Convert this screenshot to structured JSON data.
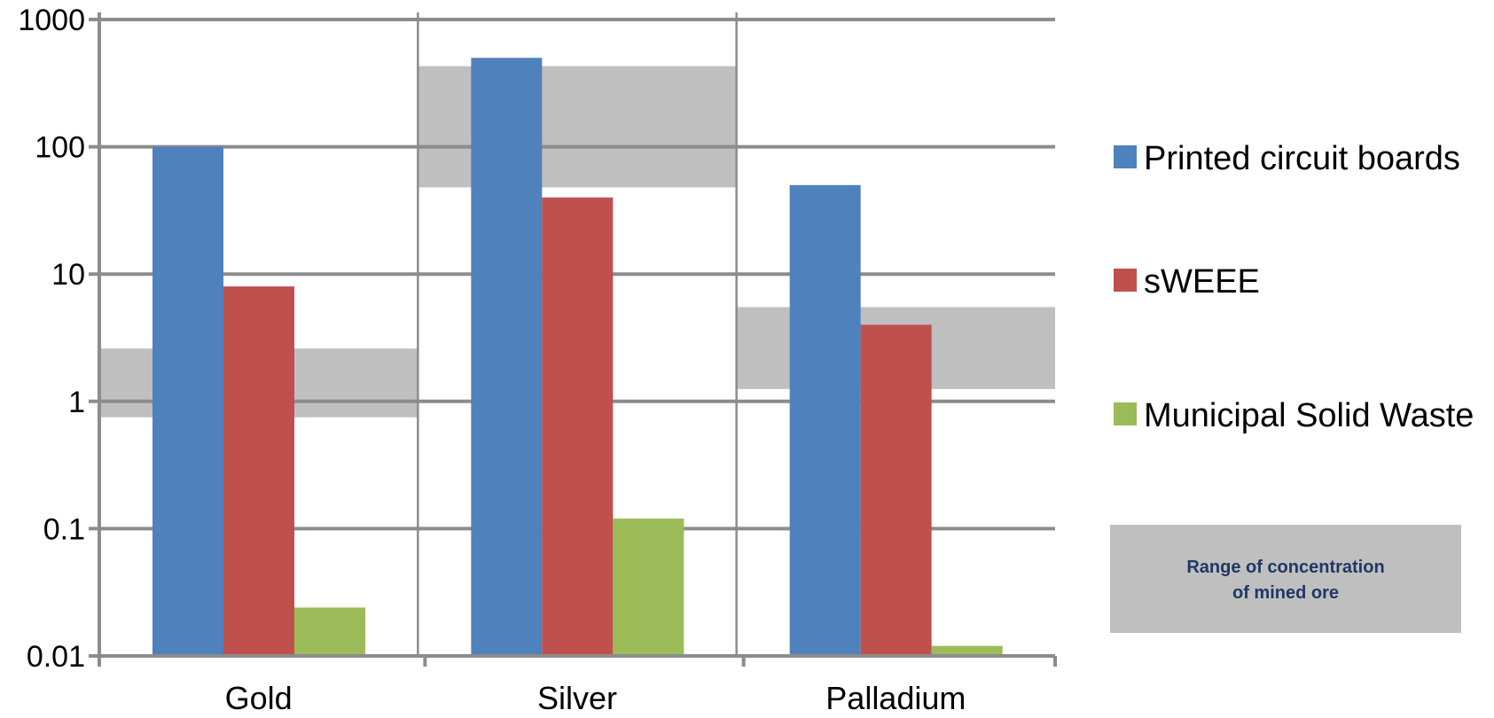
{
  "chart_data": {
    "type": "bar",
    "scale": "log",
    "ylim": [
      0.01,
      1000
    ],
    "yticks": [
      "1000",
      "100",
      "10",
      "1",
      "0.1",
      "0.01"
    ],
    "categories": [
      "Gold",
      "Silver",
      "Palladium"
    ],
    "series": [
      {
        "name": "Printed circuit boards",
        "color": "#4f81bd",
        "values": [
          100,
          500,
          50
        ]
      },
      {
        "name": "sWEEE",
        "color": "#c0504d",
        "values": [
          8,
          40,
          4
        ]
      },
      {
        "name": "Municipal Solid Waste",
        "color": "#9bbb59",
        "values": [
          0.024,
          0.12,
          0.012
        ]
      }
    ],
    "ore_ranges": [
      {
        "category": "Gold",
        "low": 0.75,
        "high": 2.6
      },
      {
        "category": "Silver",
        "low": 48,
        "high": 430
      },
      {
        "category": "Palladium",
        "low": 1.25,
        "high": 5.5
      }
    ],
    "range_color": "#bfbfbf",
    "range_legend_lines": [
      "Range of concentration",
      "of mined ore"
    ],
    "grid": true,
    "legend_position": "right"
  }
}
